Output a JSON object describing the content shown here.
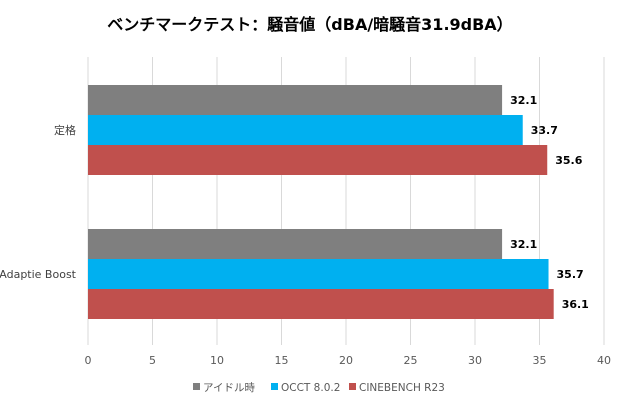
{
  "chart_data": {
    "type": "bar",
    "orientation": "horizontal",
    "title": "ベンチマークテスト：騒音値（dBA/暗騒音31.9dBA）",
    "categories": [
      "定格",
      "Adaptie Boost"
    ],
    "series": [
      {
        "name": "アイドル時",
        "color": "#7f7f7f",
        "values": [
          32.1,
          32.1
        ]
      },
      {
        "name": "OCCT 8.0.2",
        "color": "#00b0f0",
        "values": [
          33.7,
          35.7
        ]
      },
      {
        "name": "CINEBENCH R23",
        "color": "#c0504d",
        "values": [
          35.6,
          36.1
        ]
      }
    ],
    "xlim": [
      0,
      40
    ],
    "xticks": [
      0,
      5,
      10,
      15,
      20,
      25,
      30,
      35,
      40
    ],
    "grid": true,
    "legend": "bottom",
    "xlabel": "",
    "ylabel": ""
  }
}
